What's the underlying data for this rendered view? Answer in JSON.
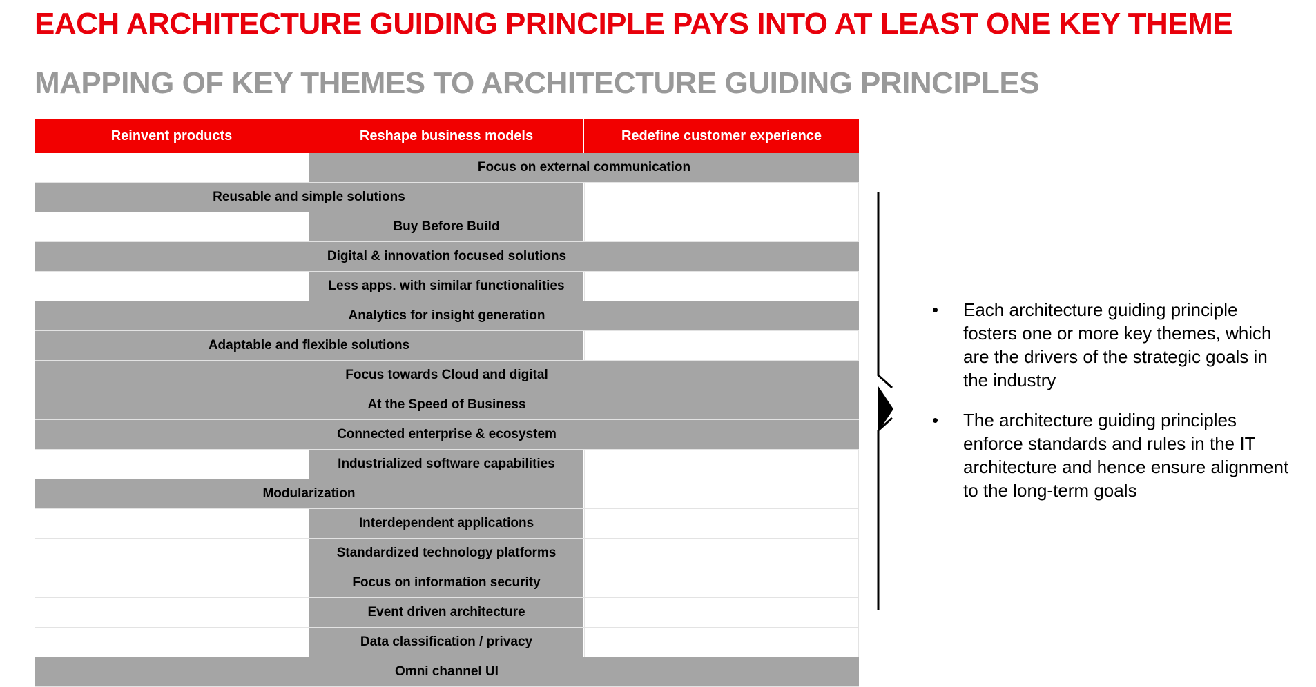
{
  "title": "EACH ARCHITECTURE GUIDING PRINCIPLE PAYS INTO AT LEAST ONE KEY THEME",
  "subtitle": "MAPPING OF KEY THEMES TO ARCHITECTURE GUIDING PRINCIPLES",
  "themes": [
    "Reinvent products",
    "Reshape business models",
    "Redefine customer experience"
  ],
  "principles": [
    {
      "label": "Focus on external communication",
      "themes": [
        2,
        3
      ]
    },
    {
      "label": "Reusable and simple solutions",
      "themes": [
        1,
        2
      ]
    },
    {
      "label": "Buy Before Build",
      "themes": [
        2
      ]
    },
    {
      "label": "Digital & innovation focused solutions",
      "themes": [
        1,
        2,
        3
      ]
    },
    {
      "label": "Less apps. with similar functionalities",
      "themes": [
        2
      ]
    },
    {
      "label": "Analytics for insight generation",
      "themes": [
        1,
        2,
        3
      ]
    },
    {
      "label": "Adaptable and flexible solutions",
      "themes": [
        1,
        2
      ]
    },
    {
      "label": "Focus towards Cloud and digital",
      "themes": [
        1,
        2,
        3
      ]
    },
    {
      "label": "At the Speed of Business",
      "themes": [
        1,
        2,
        3
      ]
    },
    {
      "label": "Connected enterprise & ecosystem",
      "themes": [
        1,
        2,
        3
      ]
    },
    {
      "label": "Industrialized software capabilities",
      "themes": [
        2
      ]
    },
    {
      "label": "Modularization",
      "themes": [
        1,
        2
      ]
    },
    {
      "label": "Interdependent applications",
      "themes": [
        2
      ]
    },
    {
      "label": "Standardized technology platforms",
      "themes": [
        2
      ]
    },
    {
      "label": "Focus on information security",
      "themes": [
        2
      ]
    },
    {
      "label": "Event driven architecture",
      "themes": [
        2
      ]
    },
    {
      "label": "Data classification / privacy",
      "themes": [
        2
      ]
    },
    {
      "label": "Omni channel UI",
      "themes": [
        1,
        2,
        3
      ]
    }
  ],
  "bullets": [
    "Each architecture guiding principle fosters one or more key themes, which are the drivers of the strategic goals in the industry",
    "The architecture guiding principles enforce standards and rules in the IT architecture and hence ensure alignment to the long-term goals"
  ],
  "bullet_symbol": "•",
  "colors": {
    "red": "#f20000",
    "bar": "#a5a5a5",
    "grey_title": "#999999"
  }
}
